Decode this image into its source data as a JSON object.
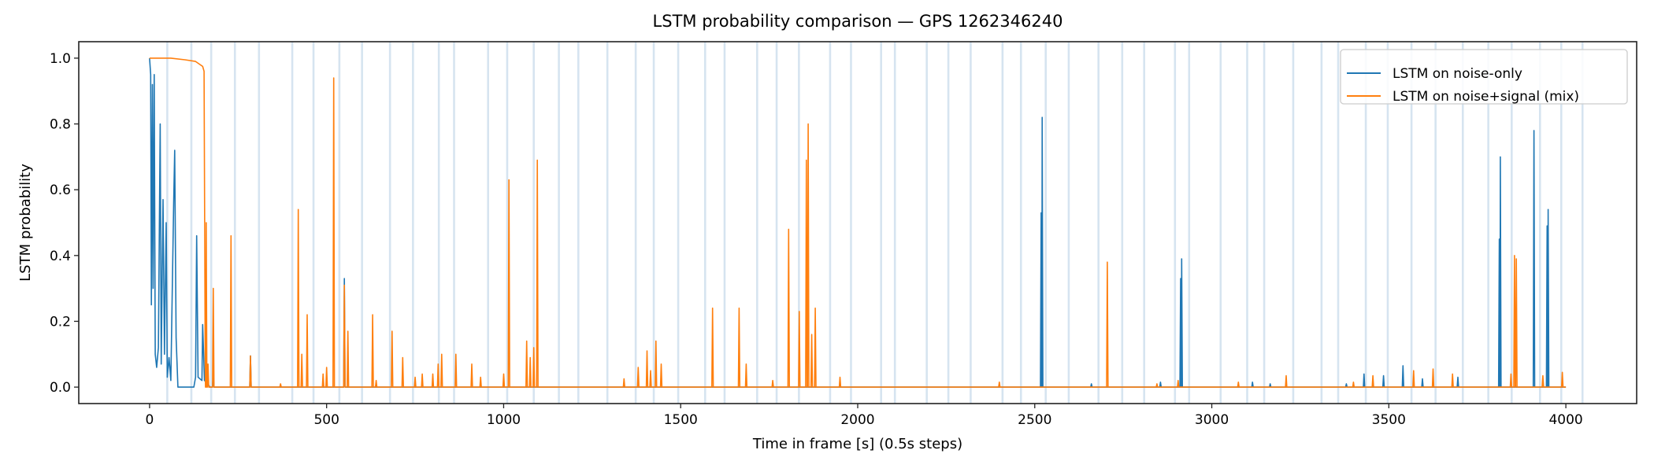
{
  "chart_data": {
    "type": "line",
    "title": "LSTM probability comparison — GPS 1262346240",
    "xlabel": "Time in frame [s] (0.5s steps)",
    "ylabel": "LSTM probability",
    "xlim": [
      -200,
      4200
    ],
    "ylim": [
      -0.05,
      1.05
    ],
    "xticks": [
      0,
      500,
      1000,
      1500,
      2000,
      2500,
      3000,
      3500,
      4000
    ],
    "xtick_labels": [
      "0",
      "500",
      "1000",
      "1500",
      "2000",
      "2500",
      "3000",
      "3500",
      "4000"
    ],
    "yticks": [
      0.0,
      0.2,
      0.4,
      0.6,
      0.8,
      1.0
    ],
    "ytick_labels": [
      "0.0",
      "0.2",
      "0.4",
      "0.6",
      "0.8",
      "1.0"
    ],
    "legend_position": "top-right",
    "grid": false,
    "vertical_markers": {
      "color": "#d6e4f0",
      "x": [
        50,
        118,
        174,
        241,
        309,
        403,
        463,
        536,
        600,
        679,
        744,
        817,
        860,
        956,
        1010,
        1085,
        1156,
        1211,
        1293,
        1373,
        1424,
        1493,
        1569,
        1624,
        1716,
        1771,
        1834,
        1922,
        1981,
        2066,
        2105,
        2195,
        2256,
        2319,
        2409,
        2461,
        2531,
        2596,
        2680,
        2747,
        2809,
        2896,
        2936,
        3025,
        3100,
        3148,
        3230,
        3310,
        3357,
        3435,
        3497,
        3564,
        3632,
        3709,
        3781,
        3847,
        3927,
        3987,
        4047
      ]
    },
    "series": [
      {
        "name": "LSTM on noise-only",
        "color": "#1f77b4",
        "head": [
          [
            0,
            1
          ],
          [
            3,
            0.95
          ],
          [
            5,
            0.25
          ],
          [
            8,
            0.92
          ],
          [
            10,
            0.3
          ],
          [
            13,
            0.95
          ],
          [
            16,
            0.1
          ],
          [
            20,
            0.06
          ],
          [
            25,
            0.12
          ],
          [
            30,
            0.8
          ],
          [
            33,
            0.07
          ],
          [
            38,
            0.57
          ],
          [
            42,
            0.1
          ],
          [
            47,
            0.5
          ],
          [
            50,
            0.03
          ],
          [
            55,
            0.09
          ],
          [
            60,
            0.02
          ],
          [
            68,
            0.56
          ],
          [
            71,
            0.72
          ],
          [
            75,
            0.15
          ],
          [
            80,
            0
          ],
          [
            125,
            0
          ],
          [
            130,
            0.03
          ],
          [
            133,
            0.46
          ],
          [
            137,
            0.03
          ],
          [
            148,
            0.02
          ],
          [
            150,
            0.19
          ],
          [
            155,
            0.02
          ],
          [
            165,
            0.01
          ],
          [
            170,
            0
          ]
        ],
        "spikes": [
          [
            180,
            0.045
          ],
          [
            285,
            0.095
          ],
          [
            550,
            0.33
          ],
          [
            2518,
            0.53
          ],
          [
            2521,
            0.82
          ],
          [
            2660,
            0.01
          ],
          [
            2855,
            0.015
          ],
          [
            2912,
            0.33
          ],
          [
            2915,
            0.39
          ],
          [
            3115,
            0.015
          ],
          [
            3165,
            0.01
          ],
          [
            3380,
            0.01
          ],
          [
            3430,
            0.04
          ],
          [
            3485,
            0.035
          ],
          [
            3540,
            0.065
          ],
          [
            3595,
            0.025
          ],
          [
            3695,
            0.03
          ],
          [
            3812,
            0.45
          ],
          [
            3815,
            0.7
          ],
          [
            3910,
            0.78
          ],
          [
            3947,
            0.49
          ],
          [
            3950,
            0.54
          ]
        ]
      },
      {
        "name": "LSTM on noise+signal (mix)",
        "color": "#ff7f0e",
        "head": [
          [
            0,
            1
          ],
          [
            60,
            1
          ],
          [
            100,
            0.995
          ],
          [
            130,
            0.99
          ],
          [
            150,
            0.975
          ],
          [
            154,
            0.96
          ],
          [
            157,
            0.1
          ],
          [
            159,
            0
          ]
        ],
        "spikes": [
          [
            160,
            0.5
          ],
          [
            165,
            0.07
          ],
          [
            180,
            0.3
          ],
          [
            230,
            0.46
          ],
          [
            285,
            0.095
          ],
          [
            370,
            0.01
          ],
          [
            420,
            0.54
          ],
          [
            430,
            0.1
          ],
          [
            445,
            0.22
          ],
          [
            490,
            0.04
          ],
          [
            500,
            0.06
          ],
          [
            520,
            0.94
          ],
          [
            550,
            0.31
          ],
          [
            560,
            0.17
          ],
          [
            630,
            0.22
          ],
          [
            640,
            0.02
          ],
          [
            685,
            0.17
          ],
          [
            715,
            0.09
          ],
          [
            750,
            0.03
          ],
          [
            770,
            0.04
          ],
          [
            800,
            0.04
          ],
          [
            815,
            0.07
          ],
          [
            825,
            0.1
          ],
          [
            865,
            0.1
          ],
          [
            910,
            0.07
          ],
          [
            935,
            0.03
          ],
          [
            1000,
            0.04
          ],
          [
            1015,
            0.63
          ],
          [
            1065,
            0.14
          ],
          [
            1075,
            0.09
          ],
          [
            1085,
            0.12
          ],
          [
            1095,
            0.69
          ],
          [
            1340,
            0.025
          ],
          [
            1380,
            0.06
          ],
          [
            1405,
            0.11
          ],
          [
            1415,
            0.05
          ],
          [
            1430,
            0.14
          ],
          [
            1445,
            0.07
          ],
          [
            1590,
            0.24
          ],
          [
            1665,
            0.24
          ],
          [
            1685,
            0.07
          ],
          [
            1760,
            0.02
          ],
          [
            1805,
            0.48
          ],
          [
            1835,
            0.23
          ],
          [
            1855,
            0.69
          ],
          [
            1860,
            0.8
          ],
          [
            1870,
            0.16
          ],
          [
            1880,
            0.24
          ],
          [
            1950,
            0.03
          ],
          [
            2400,
            0.015
          ],
          [
            2705,
            0.38
          ],
          [
            2845,
            0.01
          ],
          [
            2905,
            0.02
          ],
          [
            3075,
            0.015
          ],
          [
            3210,
            0.035
          ],
          [
            3400,
            0.015
          ],
          [
            3455,
            0.035
          ],
          [
            3570,
            0.05
          ],
          [
            3625,
            0.055
          ],
          [
            3680,
            0.04
          ],
          [
            3845,
            0.04
          ],
          [
            3855,
            0.4
          ],
          [
            3860,
            0.39
          ],
          [
            3935,
            0.035
          ],
          [
            3990,
            0.045
          ]
        ]
      }
    ]
  }
}
